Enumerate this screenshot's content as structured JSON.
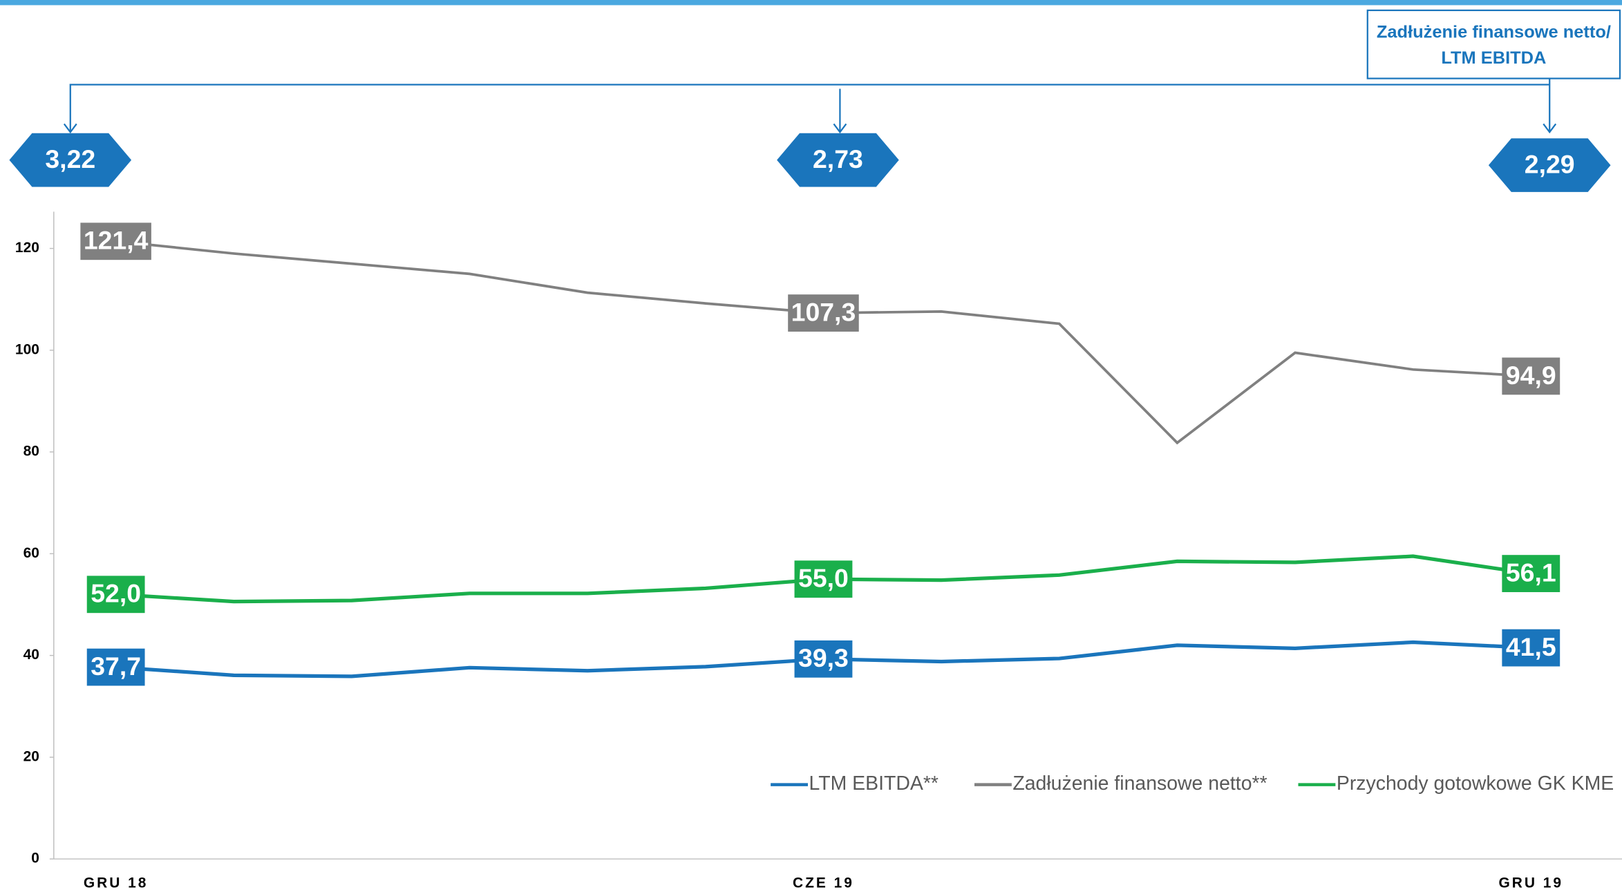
{
  "chart_data": {
    "type": "line",
    "categories": [
      "GRU 18",
      null,
      null,
      null,
      null,
      null,
      "CZE 19",
      null,
      null,
      null,
      null,
      null,
      "GRU 19"
    ],
    "series": [
      {
        "name": "LTM EBITDA**",
        "color": "#1a75bc",
        "values": [
          37.7,
          36.1,
          35.9,
          37.6,
          37.0,
          37.8,
          39.3,
          38.8,
          39.4,
          42.0,
          41.4,
          42.6,
          41.5
        ],
        "value_labels": [
          "37,7",
          null,
          null,
          null,
          null,
          null,
          "39,3",
          null,
          null,
          null,
          null,
          null,
          "41,5"
        ]
      },
      {
        "name": "Zadłużenie finansowe netto**",
        "color": "#808080",
        "values": [
          121.4,
          119.0,
          117.0,
          115.0,
          111.3,
          109.2,
          107.3,
          107.6,
          105.2,
          81.8,
          99.5,
          96.2,
          94.9
        ],
        "value_labels": [
          "121,4",
          null,
          null,
          null,
          null,
          null,
          "107,3",
          null,
          null,
          null,
          null,
          null,
          "94,9"
        ]
      },
      {
        "name": "Przychody gotowkowe GK KME",
        "color": "#1aaf4b",
        "values": [
          52.0,
          50.6,
          50.8,
          52.2,
          52.2,
          53.2,
          55.0,
          54.8,
          55.8,
          58.5,
          58.3,
          59.5,
          56.1
        ],
        "value_labels": [
          "52,0",
          null,
          null,
          null,
          null,
          null,
          "55,0",
          null,
          null,
          null,
          null,
          null,
          "56,1"
        ]
      }
    ],
    "ylim": [
      0,
      125
    ],
    "yticks": [
      0,
      20,
      40,
      60,
      80,
      100,
      120
    ],
    "grid": false,
    "legend": "bottom-right",
    "ratio": {
      "title": [
        "Zadłużenie finansowe netto/",
        "LTM EBITDA"
      ],
      "values": [
        3.22,
        2.73,
        2.29
      ],
      "value_labels": [
        "3,22",
        "2,73",
        "2,29"
      ],
      "color": "#1a75bc"
    }
  }
}
